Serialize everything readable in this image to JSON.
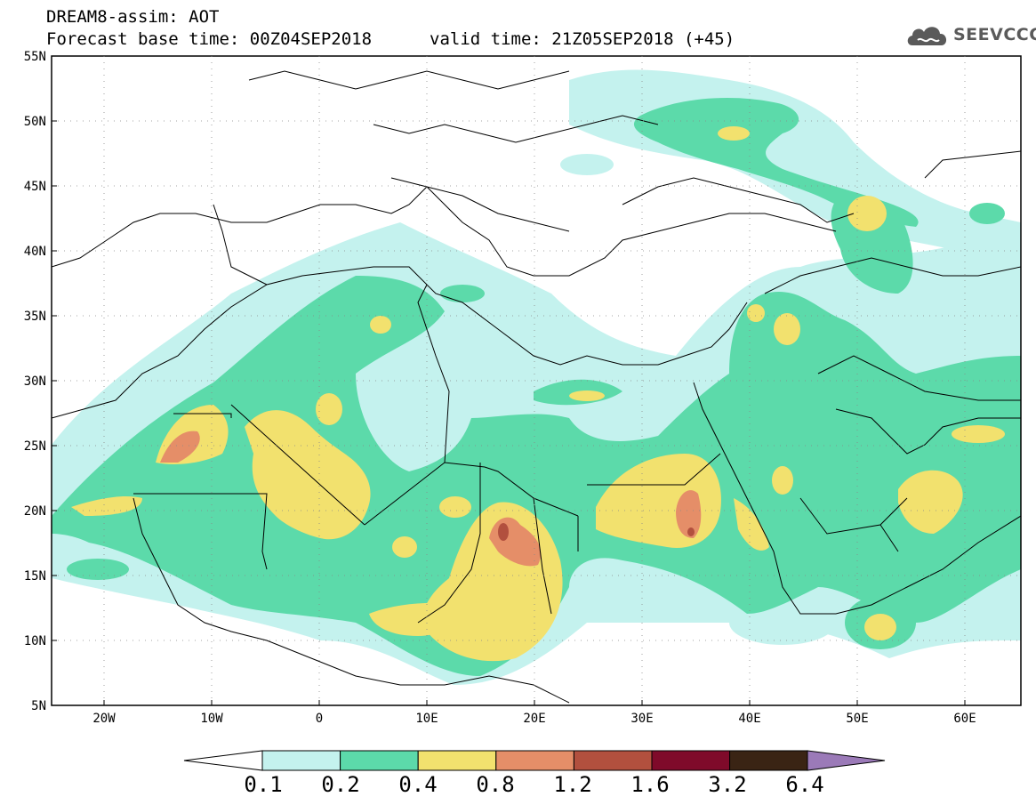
{
  "header": {
    "model_line": "DREAM8-assim: AOT",
    "base_time_line": "Forecast base time: 00Z04SEP2018",
    "valid_time_line": "valid time: 21Z05SEP2018 (+45)",
    "logo_text": "SEEVCCC"
  },
  "axes": {
    "lat_labels": [
      "55N",
      "50N",
      "45N",
      "40N",
      "35N",
      "30N",
      "25N",
      "20N",
      "15N",
      "10N",
      "5N"
    ],
    "lon_labels": [
      "20W",
      "10W",
      "0",
      "10E",
      "20E",
      "30E",
      "40E",
      "50E",
      "60E"
    ]
  },
  "colorbar": {
    "labels": [
      "0.1",
      "0.2",
      "0.4",
      "0.8",
      "1.2",
      "1.6",
      "3.2",
      "6.4"
    ],
    "colors": [
      "#c4f2ee",
      "#5cdaaa",
      "#f2e16e",
      "#e58e68",
      "#b2503e",
      "#7f0a2a",
      "#3a2414"
    ],
    "over_color": "#9b7ab8",
    "under_color": "#ffffff"
  },
  "colors": {
    "c1": "#c4f2ee",
    "c2": "#5cdaaa",
    "c3": "#f2e16e",
    "c4": "#e58e68",
    "c5": "#b2503e"
  }
}
